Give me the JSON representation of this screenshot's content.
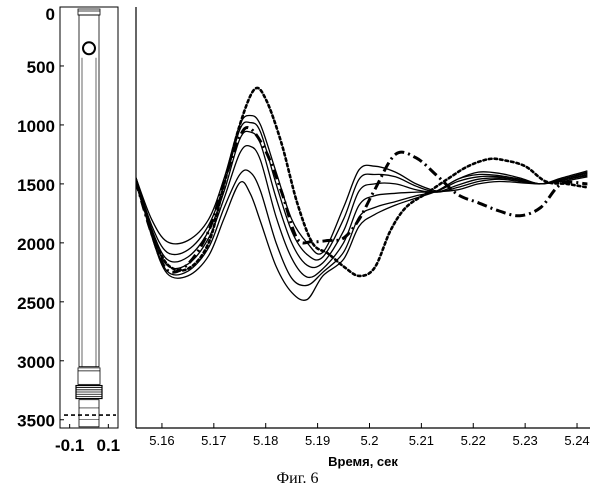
{
  "caption": "Фиг. 6",
  "chart_data": [
    {
      "type": "diagram",
      "x_ticks": [
        "-0.1",
        "0.1"
      ],
      "xlim": [
        -0.15,
        0.15
      ],
      "y_ticks": [
        "0",
        "500",
        "1000",
        "1500",
        "2000",
        "2500",
        "3000",
        "3500"
      ],
      "ylim": [
        0,
        3570
      ],
      "marker_depth": 350,
      "dashed_line_depth": 3460,
      "grid": false
    },
    {
      "type": "line",
      "xlabel": "Время, сек",
      "ylabel": "",
      "x_ticks": [
        "5.16",
        "5.17",
        "5.18",
        "5.19",
        "5.2",
        "5.21",
        "5.22",
        "5.23",
        "5.24"
      ],
      "xlim": [
        5.155,
        5.2425
      ],
      "ylim": [
        0,
        3570
      ],
      "y_reversed": true,
      "grid": false,
      "series": [
        {
          "style": "solid",
          "x": [
            5.155,
            5.158,
            5.161,
            5.165,
            5.169,
            5.172,
            5.175,
            5.177,
            5.179,
            5.182,
            5.185,
            5.188,
            5.191,
            5.195,
            5.198,
            5.201,
            5.205,
            5.209,
            5.213,
            5.217,
            5.221,
            5.225,
            5.229,
            5.233,
            5.237,
            5.242
          ],
          "y": [
            1450,
            1800,
            1990,
            1980,
            1800,
            1450,
            1000,
            920,
            1000,
            1400,
            1800,
            2000,
            2080,
            1700,
            1380,
            1350,
            1400,
            1500,
            1560,
            1550,
            1500,
            1480,
            1490,
            1500,
            1480,
            1440
          ]
        },
        {
          "style": "solid",
          "x": [
            5.155,
            5.158,
            5.161,
            5.165,
            5.169,
            5.172,
            5.175,
            5.177,
            5.179,
            5.182,
            5.185,
            5.188,
            5.191,
            5.195,
            5.198,
            5.201,
            5.205,
            5.209,
            5.213,
            5.217,
            5.221,
            5.225,
            5.229,
            5.233,
            5.237,
            5.242
          ],
          "y": [
            1450,
            1850,
            2080,
            2060,
            1850,
            1500,
            1040,
            980,
            1060,
            1500,
            1900,
            2100,
            2120,
            1800,
            1460,
            1420,
            1440,
            1520,
            1570,
            1530,
            1480,
            1460,
            1480,
            1500,
            1470,
            1430
          ]
        },
        {
          "style": "solid",
          "x": [
            5.155,
            5.158,
            5.161,
            5.165,
            5.169,
            5.172,
            5.175,
            5.177,
            5.179,
            5.182,
            5.185,
            5.188,
            5.191,
            5.195,
            5.198,
            5.201,
            5.205,
            5.209,
            5.213,
            5.217,
            5.221,
            5.225,
            5.229,
            5.233,
            5.237,
            5.242
          ],
          "y": [
            1450,
            1880,
            2140,
            2120,
            1900,
            1560,
            1120,
            1060,
            1160,
            1620,
            2000,
            2190,
            2170,
            1900,
            1560,
            1500,
            1500,
            1550,
            1570,
            1510,
            1460,
            1450,
            1470,
            1500,
            1470,
            1420
          ]
        },
        {
          "style": "solid",
          "x": [
            5.155,
            5.158,
            5.161,
            5.165,
            5.169,
            5.172,
            5.175,
            5.177,
            5.179,
            5.182,
            5.185,
            5.188,
            5.191,
            5.195,
            5.198,
            5.201,
            5.205,
            5.209,
            5.213,
            5.217,
            5.221,
            5.225,
            5.229,
            5.233,
            5.237,
            5.242
          ],
          "y": [
            1450,
            1900,
            2190,
            2180,
            1960,
            1620,
            1240,
            1180,
            1300,
            1780,
            2130,
            2290,
            2220,
            2000,
            1680,
            1600,
            1580,
            1570,
            1560,
            1480,
            1440,
            1440,
            1470,
            1500,
            1460,
            1410
          ]
        },
        {
          "style": "solid",
          "x": [
            5.155,
            5.158,
            5.161,
            5.165,
            5.169,
            5.172,
            5.175,
            5.177,
            5.179,
            5.182,
            5.185,
            5.188,
            5.191,
            5.195,
            5.198,
            5.201,
            5.205,
            5.209,
            5.213,
            5.217,
            5.221,
            5.225,
            5.229,
            5.233,
            5.237,
            5.242
          ],
          "y": [
            1450,
            1920,
            2240,
            2240,
            2040,
            1700,
            1420,
            1400,
            1560,
            2000,
            2300,
            2360,
            2250,
            2080,
            1780,
            1700,
            1650,
            1600,
            1560,
            1460,
            1420,
            1430,
            1460,
            1500,
            1460,
            1400
          ]
        },
        {
          "style": "solid",
          "x": [
            5.155,
            5.158,
            5.161,
            5.165,
            5.169,
            5.172,
            5.175,
            5.177,
            5.179,
            5.182,
            5.185,
            5.188,
            5.191,
            5.195,
            5.198,
            5.201,
            5.205,
            5.209,
            5.213,
            5.217,
            5.221,
            5.225,
            5.229,
            5.233,
            5.237,
            5.242
          ],
          "y": [
            1450,
            1940,
            2260,
            2280,
            2110,
            1790,
            1490,
            1580,
            1820,
            2200,
            2420,
            2480,
            2280,
            2140,
            1860,
            1760,
            1680,
            1620,
            1560,
            1460,
            1400,
            1410,
            1450,
            1500,
            1450,
            1390
          ]
        },
        {
          "style": "dotted",
          "x": [
            5.155,
            5.158,
            5.161,
            5.165,
            5.169,
            5.172,
            5.175,
            5.1778,
            5.18,
            5.183,
            5.186,
            5.189,
            5.192,
            5.195,
            5.198,
            5.201,
            5.204,
            5.207,
            5.211,
            5.215,
            5.219,
            5.223,
            5.226,
            5.23,
            5.234,
            5.238,
            5.242
          ],
          "y": [
            1480,
            1900,
            2180,
            2220,
            2000,
            1500,
            1000,
            700,
            780,
            1150,
            1650,
            2000,
            2090,
            2200,
            2280,
            2210,
            1900,
            1700,
            1580,
            1460,
            1350,
            1290,
            1300,
            1350,
            1480,
            1500,
            1530
          ]
        },
        {
          "style": "dashdot",
          "x": [
            5.155,
            5.158,
            5.161,
            5.165,
            5.169,
            5.172,
            5.175,
            5.177,
            5.18,
            5.183,
            5.186,
            5.189,
            5.192,
            5.195,
            5.198,
            5.201,
            5.205,
            5.209,
            5.213,
            5.217,
            5.221,
            5.225,
            5.229,
            5.233,
            5.237,
            5.242
          ],
          "y": [
            1480,
            1920,
            2230,
            2180,
            1900,
            1480,
            1100,
            1030,
            1220,
            1560,
            1960,
            1990,
            1980,
            1960,
            1800,
            1550,
            1250,
            1280,
            1430,
            1590,
            1660,
            1730,
            1770,
            1700,
            1500,
            1500
          ]
        }
      ]
    }
  ]
}
